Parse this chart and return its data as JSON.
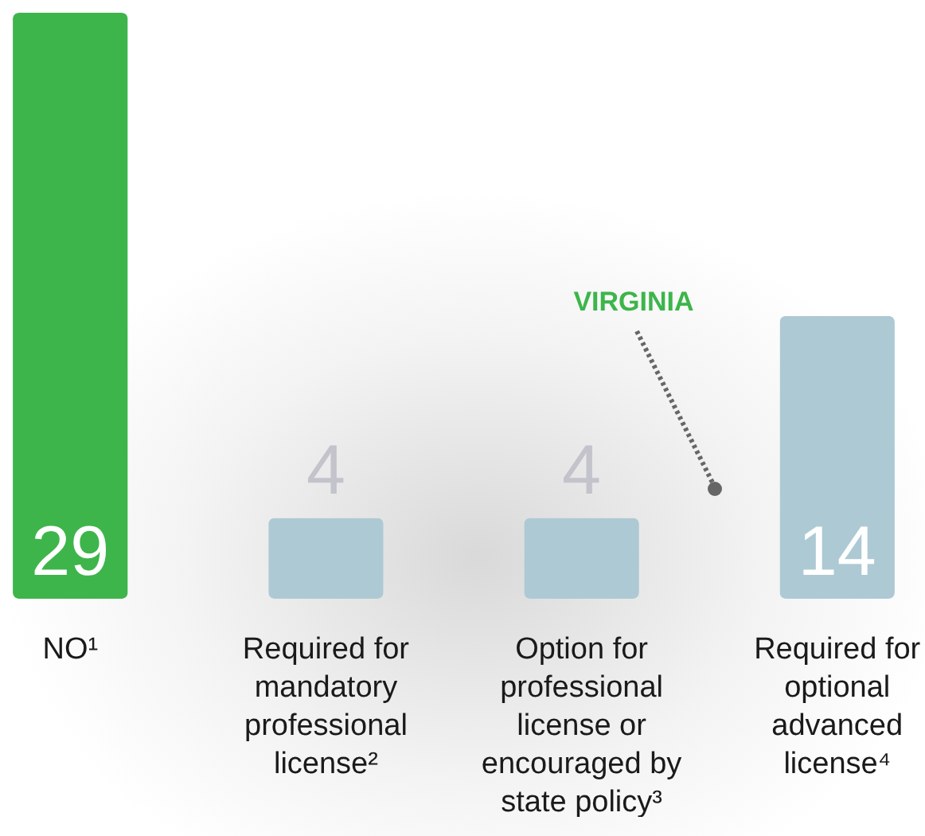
{
  "chart_data": {
    "type": "bar",
    "categories": [
      "NO¹",
      "Required for mandatory professional license²",
      "Option for professional license or encouraged by state policy³",
      "Required for optional advanced license⁴"
    ],
    "values": [
      29,
      4,
      4,
      14
    ],
    "colors": [
      "#3db54a",
      "#adc9d4",
      "#adc9d4",
      "#adc9d4"
    ],
    "data_labels": true,
    "annotations": [
      "VIRGINIA"
    ]
  }
}
